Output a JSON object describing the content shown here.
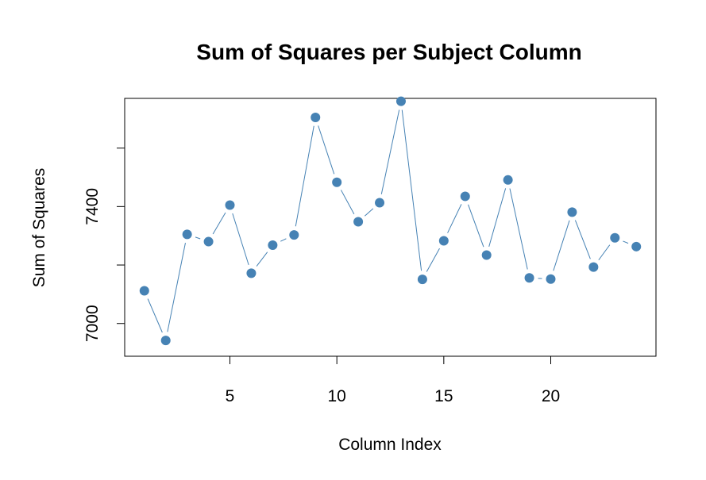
{
  "chart_data": {
    "type": "line",
    "title": "Sum of Squares per Subject Column",
    "xlabel": "Column Index",
    "ylabel": "Sum of Squares",
    "xlim": [
      0.08,
      24.92
    ],
    "ylim": [
      6888,
      7770
    ],
    "x_ticks": [
      5,
      10,
      15,
      20
    ],
    "y_ticks": [
      7000,
      7200,
      7400,
      7600
    ],
    "y_tick_labels": [
      "7000",
      "",
      "7400",
      ""
    ],
    "grid": false,
    "legend": "none",
    "markers": true,
    "color": "#4682B4",
    "x": [
      1,
      2,
      3,
      4,
      5,
      6,
      7,
      8,
      9,
      10,
      11,
      12,
      13,
      14,
      15,
      16,
      17,
      18,
      19,
      20,
      21,
      22,
      23,
      24
    ],
    "y": [
      7112,
      6942,
      7305,
      7280,
      7405,
      7172,
      7268,
      7303,
      7705,
      7483,
      7348,
      7413,
      7760,
      7151,
      7283,
      7435,
      7234,
      7491,
      7156,
      7152,
      7381,
      7193,
      7293,
      7263
    ]
  }
}
